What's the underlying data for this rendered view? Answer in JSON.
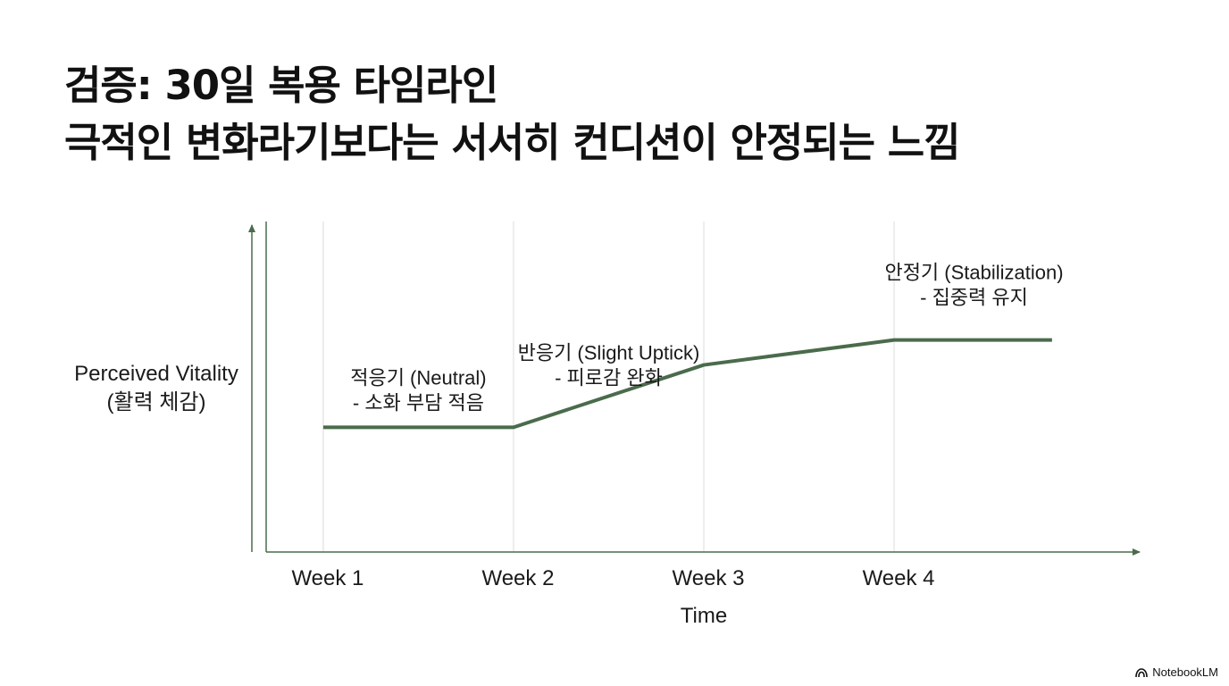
{
  "title": {
    "line1": "검증: 30일 복용 타임라인",
    "line2": "극적인 변화라기보다는 서서히 컨디션이 안정되는 느낌"
  },
  "chart_data": {
    "type": "line",
    "categories": [
      "Week 1",
      "Week 2",
      "Week 3",
      "Week 4"
    ],
    "x": [
      1,
      2,
      3,
      4,
      4.83
    ],
    "y": [
      2.0,
      2.0,
      3.0,
      3.4,
      3.4
    ],
    "xlim": [
      0.7,
      5.3
    ],
    "ylim": [
      0,
      5.3
    ],
    "xlabel": "Time",
    "ylabel_line1": "Perceived Vitality",
    "ylabel_line2": "(활력 체감)",
    "grid": "vertical",
    "line_color": "#4a6b4c",
    "axis_color": "#4a6b4c",
    "annotations": [
      {
        "line1": "적응기 (Neutral)",
        "line2": "- 소화 부담 적음",
        "x": 1.5,
        "y": 2.0
      },
      {
        "line1": "반응기 (Slight Uptick)",
        "line2": "- 피로감 완화",
        "x": 2.5,
        "y": 2.4
      },
      {
        "line1": "안정기 (Stabilization)",
        "line2": "- 집중력 유지",
        "x": 4.42,
        "y": 3.4
      }
    ]
  },
  "brand": {
    "label": "NotebookLM",
    "icon": "notebooklm-logo-icon"
  }
}
